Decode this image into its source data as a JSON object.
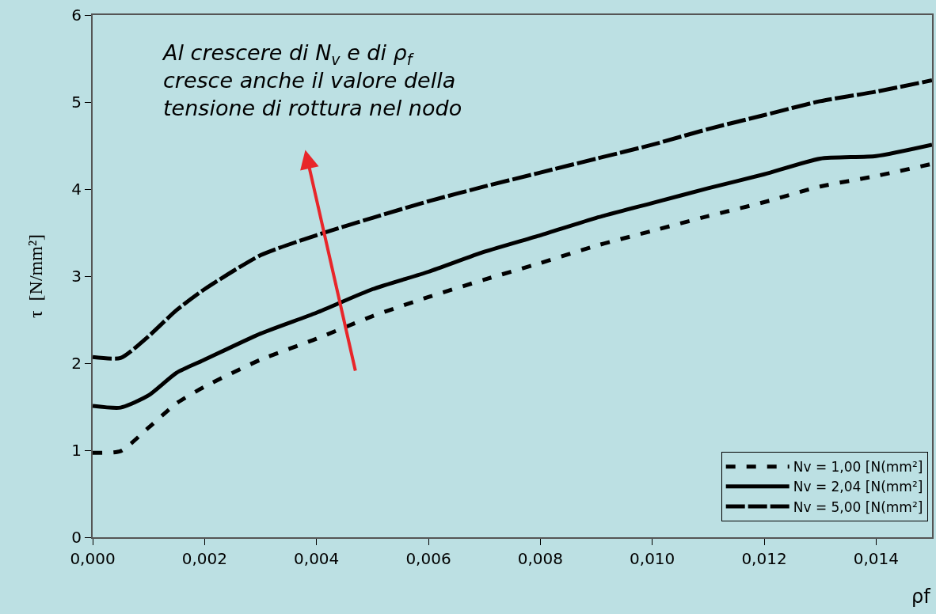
{
  "chart_data": {
    "type": "line",
    "xlabel": "ρf",
    "ylabel": "τ  [N/mm²]",
    "annotations": [
      "Al crescere di N$_{v}$ e di ρ$_{f}$\ncresce anche il valore della\ntensione di rottura nel nodo"
    ],
    "x": [
      0,
      0.0005,
      0.001,
      0.0015,
      0.002,
      0.003,
      0.004,
      0.005,
      0.006,
      0.007,
      0.008,
      0.009,
      0.01,
      0.011,
      0.012,
      0.013,
      0.014,
      0.015
    ],
    "series": [
      {
        "name": "Nv = 1,00 [N(mm²]",
        "color": "#000000",
        "line_style": "dotted",
        "values": [
          0.97,
          0.99,
          1.26,
          1.54,
          1.73,
          2.04,
          2.28,
          2.54,
          2.76,
          2.96,
          3.15,
          3.35,
          3.52,
          3.69,
          3.85,
          4.03,
          4.15,
          4.29
        ]
      },
      {
        "name": "Nv = 2,04 [N(mm²]",
        "color": "#000000",
        "line_style": "solid",
        "values": [
          1.51,
          1.49,
          1.63,
          1.89,
          2.04,
          2.34,
          2.58,
          2.85,
          3.05,
          3.28,
          3.47,
          3.67,
          3.84,
          4.01,
          4.17,
          4.35,
          4.38,
          4.51
        ]
      },
      {
        "name": "Nv = 5,00 [N(mm²]",
        "color": "#000000",
        "line_style": "dashed",
        "values": [
          2.07,
          2.06,
          2.31,
          2.61,
          2.85,
          3.24,
          3.47,
          3.67,
          3.86,
          4.03,
          4.19,
          4.35,
          4.51,
          4.69,
          4.85,
          5.01,
          5.12,
          5.25
        ]
      }
    ],
    "xlim": [
      0,
      0.015
    ],
    "xticks": [
      {
        "value": 0,
        "label": "0,000"
      },
      {
        "value": 0.002,
        "label": "0,002"
      },
      {
        "value": 0.004,
        "label": "0,004"
      },
      {
        "value": 0.006,
        "label": "0,006"
      },
      {
        "value": 0.008,
        "label": "0,008"
      },
      {
        "value": 0.01,
        "label": "0,010"
      },
      {
        "value": 0.012,
        "label": "0,012"
      },
      {
        "value": 0.014,
        "label": "0,014"
      }
    ],
    "ylim": [
      0,
      6
    ],
    "yticks": [
      0,
      1,
      2,
      3,
      4,
      5,
      6
    ],
    "grid": false,
    "legend": "bottom right",
    "marker": "none"
  }
}
